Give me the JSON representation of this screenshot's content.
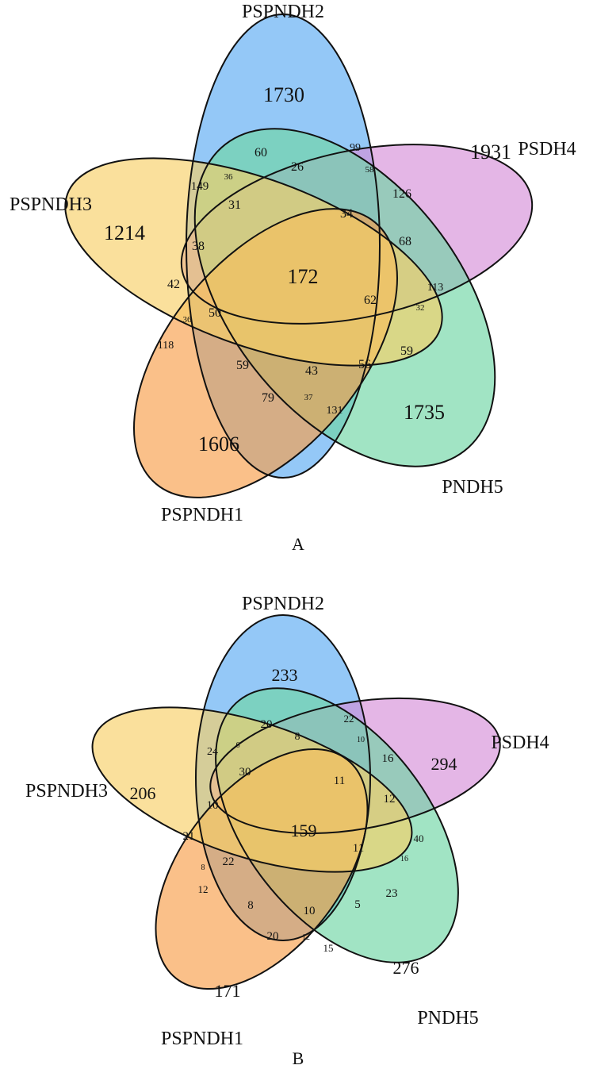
{
  "colors": {
    "PSPNDH2": "#5aaaf3",
    "PSDH4": "#d68fd8",
    "PNDH5": "#6fd5a4",
    "PSPNDH1": "#f79e4a",
    "PSPNDH3": "#f8cf67",
    "outline": "#111111"
  },
  "panels": [
    {
      "id": "A",
      "caption": "A",
      "set_labels": {
        "PSPNDH2": "PSPNDH2",
        "PSDH4": "PSDH4",
        "PSPNDH3": "PSPNDH3",
        "PNDH5": "PNDH5",
        "PSPNDH1": "PSPNDH1"
      },
      "counts": [
        "1730",
        "1931",
        "1214",
        "1735",
        "1606",
        "172",
        "60",
        "99",
        "26",
        "36",
        "58",
        "149",
        "31",
        "34",
        "126",
        "38",
        "68",
        "42",
        "113",
        "62",
        "32",
        "36",
        "50",
        "118",
        "59",
        "43",
        "56",
        "59",
        "79",
        "37",
        "131"
      ]
    },
    {
      "id": "B",
      "caption": "B",
      "set_labels": {
        "PSPNDH2": "PSPNDH2",
        "PSDH4": "PSDH4",
        "PSPNDH3": "PSPNDH3",
        "PNDH5": "PNDH5",
        "PSPNDH1": "PSPNDH1"
      },
      "counts": [
        "233",
        "294",
        "206",
        "276",
        "171",
        "159",
        "20",
        "22",
        "8",
        "6",
        "10",
        "24",
        "30",
        "11",
        "16",
        "10",
        "12",
        "21",
        "40",
        "11",
        "16",
        "8",
        "22",
        "12",
        "8",
        "10",
        "5",
        "23",
        "20",
        "12",
        "15"
      ]
    }
  ]
}
